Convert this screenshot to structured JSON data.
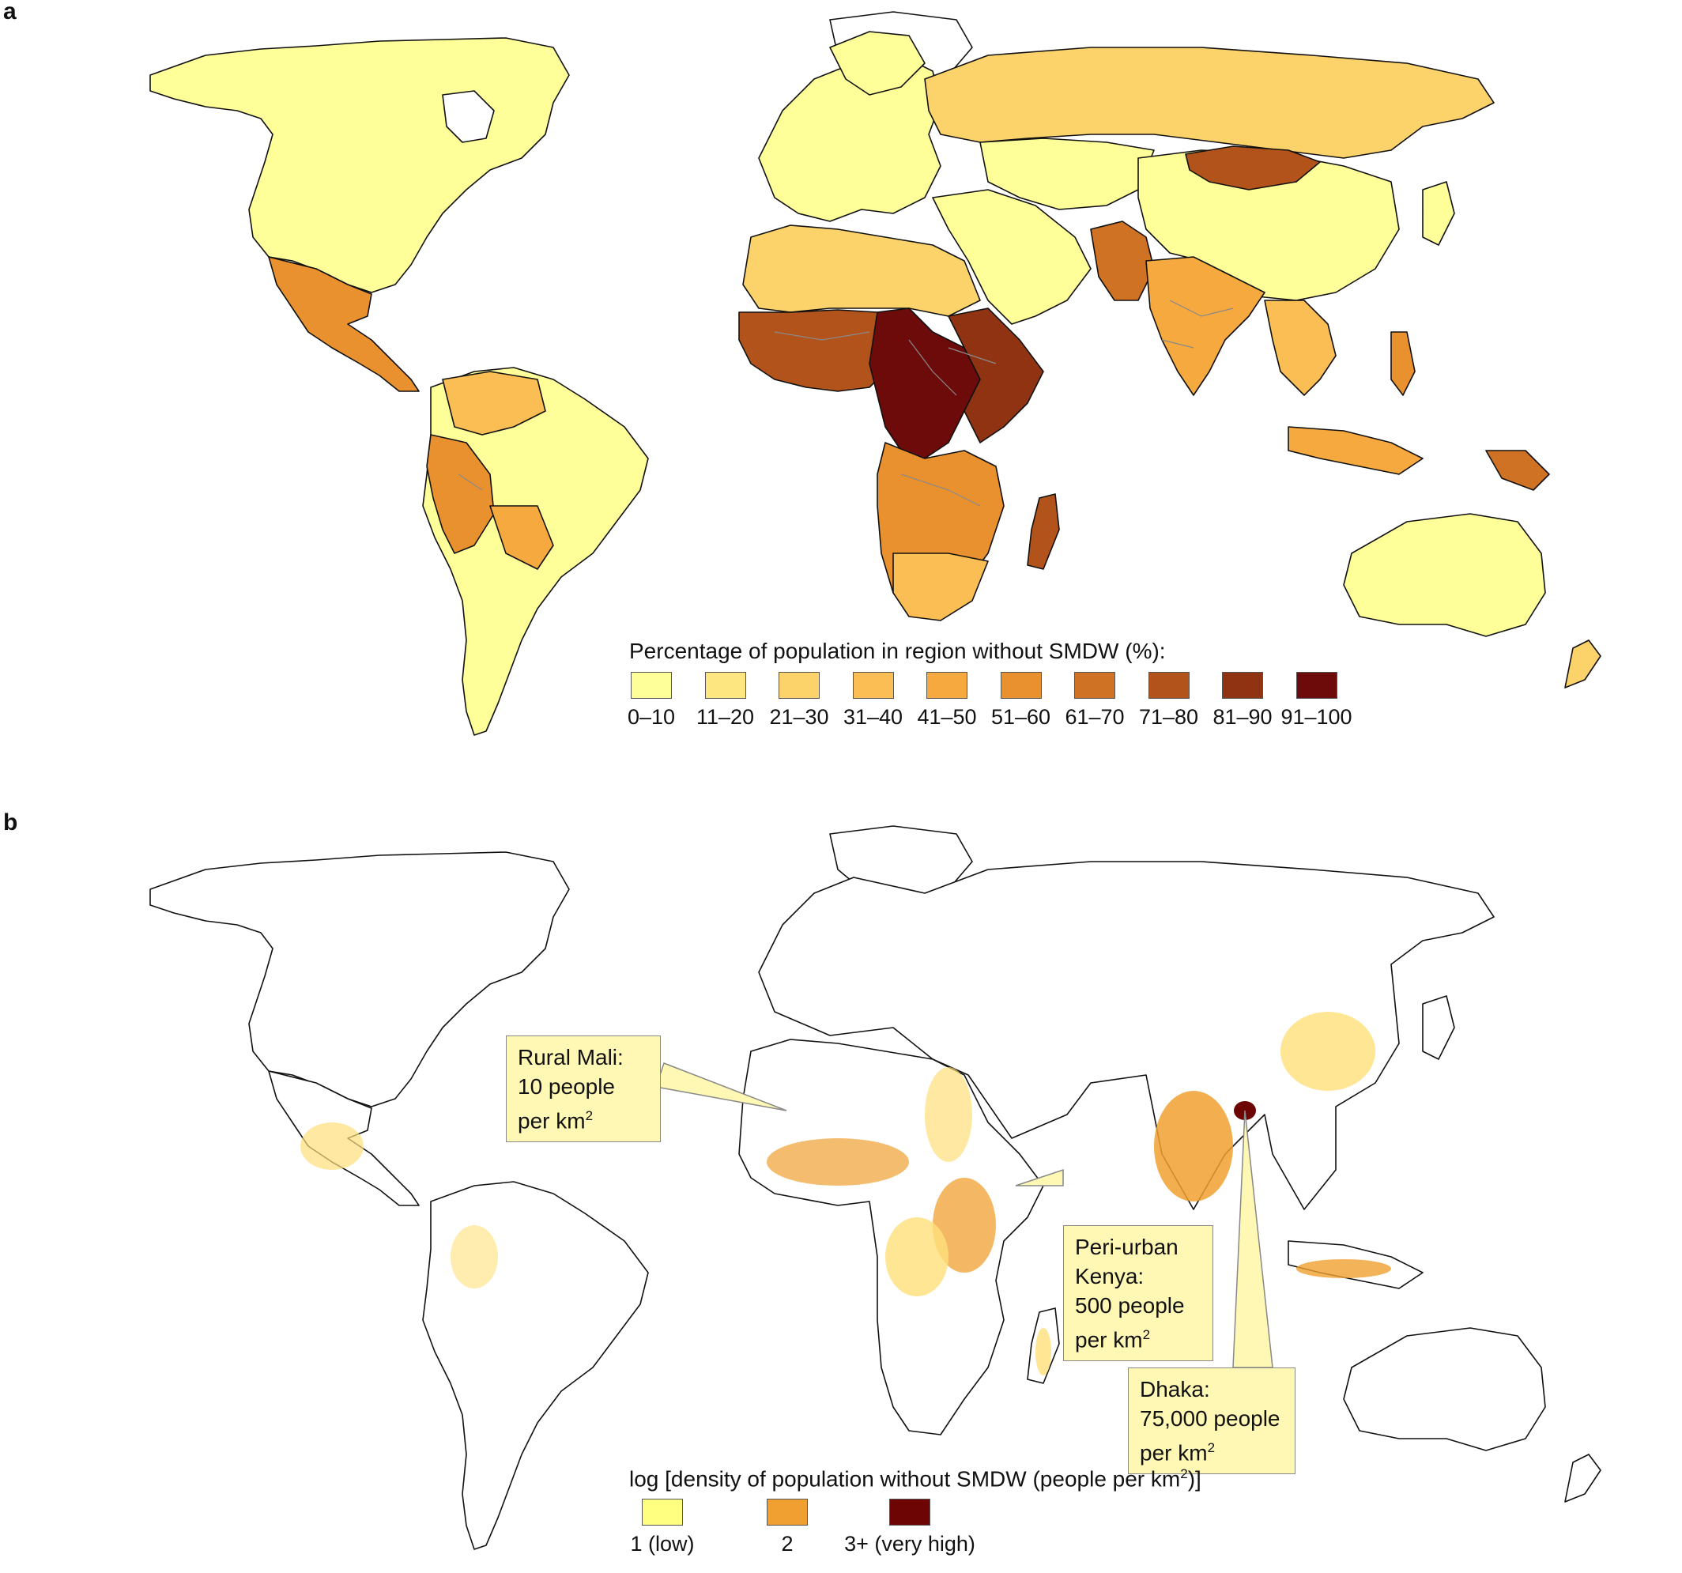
{
  "panel_a": {
    "label": "a",
    "legend": {
      "title": "Percentage of population in region without SMDW (%):",
      "items": [
        {
          "label": "0–10",
          "color": "#ffff99"
        },
        {
          "label": "11–20",
          "color": "#fde57f"
        },
        {
          "label": "21–30",
          "color": "#fcd26a"
        },
        {
          "label": "31–40",
          "color": "#fbbe55"
        },
        {
          "label": "41–50",
          "color": "#f6a93e"
        },
        {
          "label": "51–60",
          "color": "#e8912e"
        },
        {
          "label": "61–70",
          "color": "#cf7224"
        },
        {
          "label": "71–80",
          "color": "#b1531a"
        },
        {
          "label": "81–90",
          "color": "#8f3312"
        },
        {
          "label": "91–100",
          "color": "#6d0b0b"
        }
      ]
    }
  },
  "panel_b": {
    "label": "b",
    "legend": {
      "title_prefix": "log [density of population without SMDW (people per km",
      "title_sup": "2",
      "title_suffix": ")]",
      "items": [
        {
          "label": "1 (low)",
          "color": "#ffff80"
        },
        {
          "label": "2",
          "color": "#f0a030"
        },
        {
          "label": "3+ (very high)",
          "color": "#6d0505"
        }
      ]
    },
    "callouts": {
      "mali": {
        "lines": [
          "Rural Mali:",
          "10 people"
        ],
        "last_prefix": "per km",
        "sup": "2"
      },
      "kenya": {
        "lines": [
          "Peri-urban",
          "Kenya:",
          "500 people"
        ],
        "last_prefix": "per km",
        "sup": "2"
      },
      "dhaka": {
        "lines": [
          "Dhaka:",
          "75,000 people"
        ],
        "last_prefix": "per km",
        "sup": "2"
      }
    }
  }
}
